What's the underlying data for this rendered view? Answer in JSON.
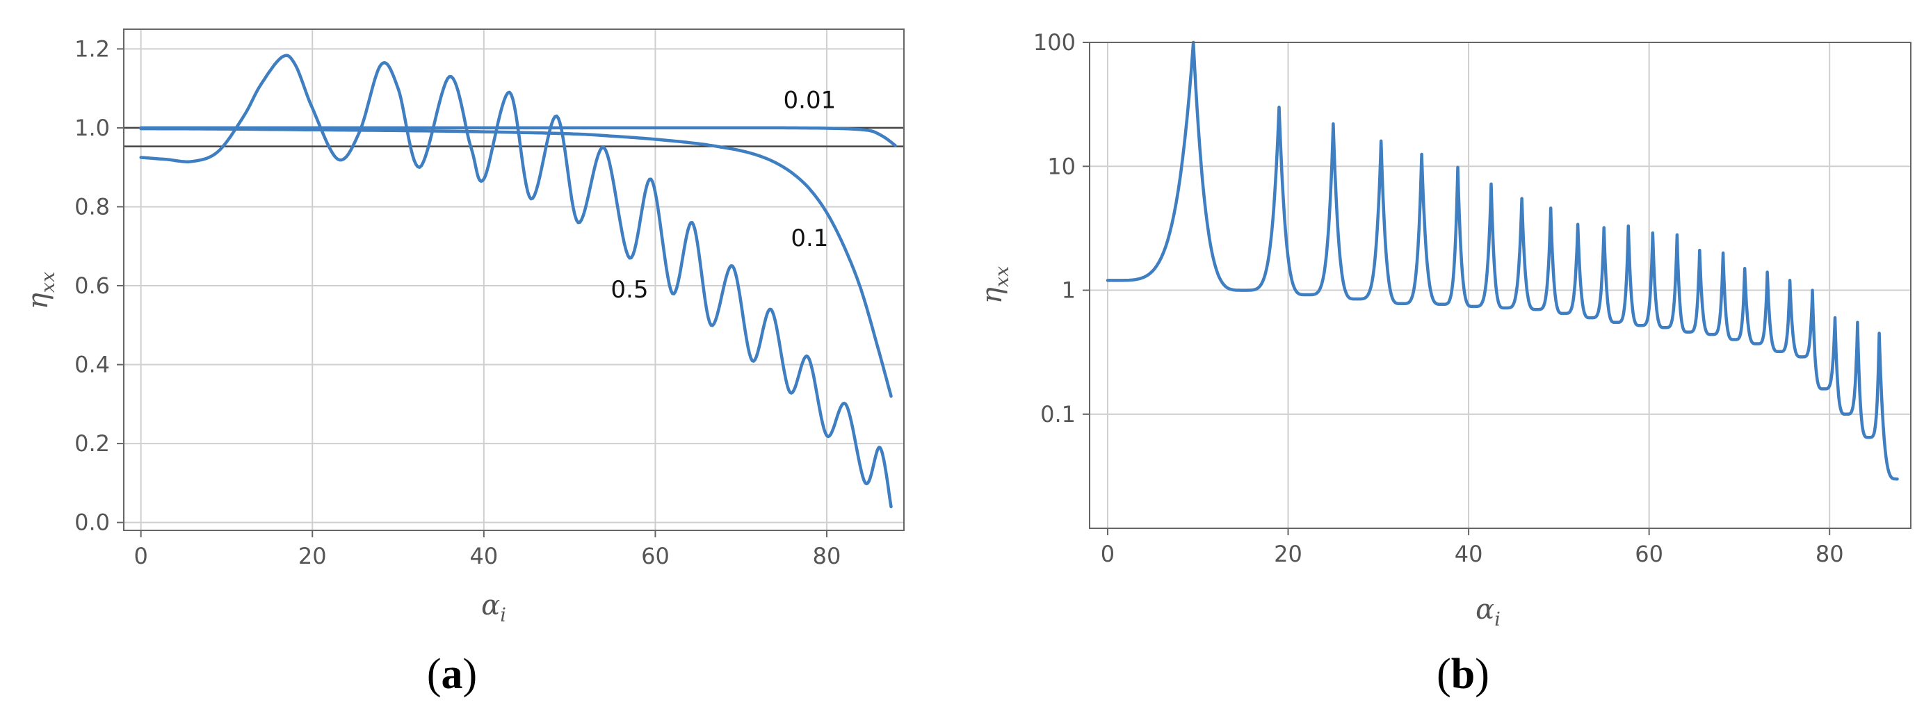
{
  "chart_data": [
    {
      "panel": "(a)",
      "panel_letter": "a",
      "type": "line",
      "xlabel": "α",
      "xlabel_sub": "i",
      "ylabel": "η",
      "ylabel_sub": "xx",
      "xlim": [
        -2,
        89
      ],
      "ylim": [
        -0.02,
        1.25
      ],
      "xticks": [
        0,
        20,
        40,
        60,
        80
      ],
      "yticks": [
        0.0,
        0.2,
        0.4,
        0.6,
        0.8,
        1.0,
        1.2
      ],
      "ytick_labels": [
        "0.0",
        "0.2",
        "0.4",
        "0.6",
        "0.8",
        "1.0",
        "1.2"
      ],
      "grid": true,
      "reference_lines": [
        1.0,
        0.953
      ],
      "series": [
        {
          "label": "0.01",
          "label_at": [
            78,
            1.05
          ],
          "x": [
            0,
            10,
            20,
            30,
            40,
            50,
            60,
            70,
            75,
            80,
            83,
            85,
            86,
            87,
            88
          ],
          "y": [
            1.0,
            1.0,
            1.0,
            1.0,
            1.0,
            1.0,
            1.0,
            1.0,
            1.0,
            0.999,
            0.997,
            0.993,
            0.985,
            0.972,
            0.955
          ]
        },
        {
          "label": "0.1",
          "label_at": [
            78,
            0.7
          ],
          "x": [
            0,
            10,
            20,
            30,
            40,
            50,
            55,
            60,
            65,
            68,
            70,
            72,
            74,
            76,
            78,
            80,
            82,
            84,
            86,
            87.5
          ],
          "y": [
            0.998,
            0.997,
            0.995,
            0.993,
            0.99,
            0.985,
            0.979,
            0.971,
            0.96,
            0.95,
            0.942,
            0.93,
            0.912,
            0.885,
            0.845,
            0.785,
            0.7,
            0.59,
            0.44,
            0.32
          ]
        },
        {
          "label": "0.5",
          "label_at": [
            57,
            0.57
          ],
          "x": [
            0,
            3,
            6,
            9,
            12,
            14,
            16.5,
            18,
            20,
            23,
            25.5,
            28,
            30,
            32.5,
            36,
            38.5,
            40,
            43,
            45.5,
            48.5,
            51,
            54,
            57,
            59.5,
            62,
            64.3,
            66.5,
            69,
            71.3,
            73.5,
            75.7,
            77.8,
            80,
            82.2,
            84.5,
            86.2,
            87.5
          ],
          "y": [
            0.925,
            0.92,
            0.915,
            0.94,
            1.03,
            1.11,
            1.18,
            1.16,
            1.05,
            0.92,
            0.99,
            1.16,
            1.1,
            0.9,
            1.13,
            0.95,
            0.87,
            1.09,
            0.82,
            1.03,
            0.76,
            0.95,
            0.67,
            0.87,
            0.58,
            0.76,
            0.5,
            0.65,
            0.41,
            0.54,
            0.33,
            0.42,
            0.22,
            0.3,
            0.1,
            0.19,
            0.04
          ]
        }
      ]
    },
    {
      "panel": "(b)",
      "panel_letter": "b",
      "type": "line",
      "xlabel": "α",
      "xlabel_sub": "i",
      "ylabel": "η",
      "ylabel_sub": "xx",
      "xlim": [
        -2,
        89
      ],
      "ylim": [
        0.012,
        100
      ],
      "yscale": "log",
      "xticks": [
        0,
        20,
        40,
        60,
        80
      ],
      "yticks": [
        0.1,
        1,
        10,
        100
      ],
      "ytick_labels": [
        "0.1",
        "1",
        "10",
        "100"
      ],
      "grid": true,
      "series": [
        {
          "peaks_x": [
            9.5,
            19,
            25,
            30.3,
            34.8,
            38.8,
            42.5,
            45.9,
            49.1,
            52.1,
            55.0,
            57.7,
            60.4,
            63.1,
            65.6,
            68.2,
            70.6,
            73.1,
            75.6,
            78.1,
            80.6,
            83.1,
            85.5
          ],
          "peaks_y": [
            100,
            30,
            22,
            16,
            12.5,
            9.8,
            7.2,
            5.5,
            4.6,
            3.4,
            3.2,
            3.3,
            2.9,
            2.8,
            2.1,
            2.0,
            1.5,
            1.4,
            1.2,
            1.0,
            0.6,
            0.55,
            0.45
          ],
          "valleys_x": [
            0,
            15,
            22,
            27.5,
            32.5,
            37,
            40.5,
            44,
            47.5,
            50.5,
            53.5,
            56.3,
            59,
            61.7,
            64.3,
            66.9,
            69.4,
            71.9,
            74.4,
            76.9,
            79.3,
            81.8,
            84.3,
            87.5
          ],
          "valleys_y": [
            1.2,
            1.0,
            0.92,
            0.85,
            0.78,
            0.77,
            0.74,
            0.72,
            0.7,
            0.65,
            0.6,
            0.55,
            0.52,
            0.5,
            0.46,
            0.44,
            0.4,
            0.37,
            0.32,
            0.29,
            0.16,
            0.1,
            0.065,
            0.03
          ]
        }
      ]
    }
  ]
}
